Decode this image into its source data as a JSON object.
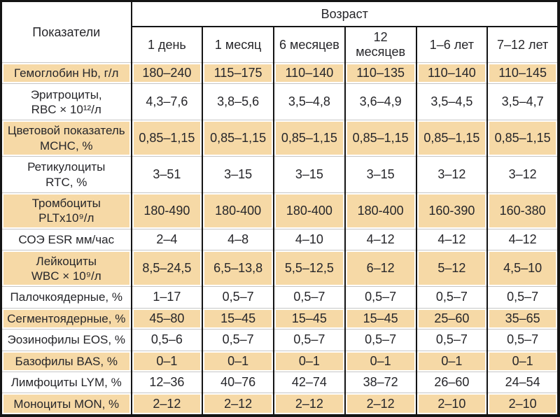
{
  "table": {
    "corner_header": "Показатели",
    "age_group_header": "Возраст",
    "age_columns": [
      "1 день",
      "1 месяц",
      "6 месяцев",
      "12 месяцев",
      "1–6 лет",
      "7–12 лет"
    ],
    "rows": [
      {
        "label": "Гемоглобин Hb, г/л",
        "values": [
          "180–240",
          "115–175",
          "110–140",
          "110–135",
          "110–140",
          "110–145"
        ]
      },
      {
        "label": "Эритроциты,\nRBC × 10¹²/л",
        "values": [
          "4,3–7,6",
          "3,8–5,6",
          "3,5–4,8",
          "3,6–4,9",
          "3,5–4,5",
          "3,5–4,7"
        ]
      },
      {
        "label": "Цветовой показатель\nMCHC, %",
        "values": [
          "0,85–1,15",
          "0,85–1,15",
          "0,85–1,15",
          "0,85–1,15",
          "0,85–1,15",
          "0,85–1,15"
        ]
      },
      {
        "label": "Ретикулоциты\nRTC, %",
        "values": [
          "3–51",
          "3–15",
          "3–15",
          "3–15",
          "3–12",
          "3–12"
        ]
      },
      {
        "label": "Тромбоциты\nPLTx10⁹/л",
        "values": [
          "180-490",
          "180-400",
          "180-400",
          "180-400",
          "160-390",
          "160-380"
        ]
      },
      {
        "label": "СОЭ ESR мм/час",
        "values": [
          "2–4",
          "4–8",
          "4–10",
          "4–12",
          "4–12",
          "4–12"
        ]
      },
      {
        "label": "Лейкоциты\nWBC × 10⁹/л",
        "values": [
          "8,5–24,5",
          "6,5–13,8",
          "5,5–12,5",
          "6–12",
          "5–12",
          "4,5–10"
        ]
      },
      {
        "label": "Палочкоядерные, %",
        "values": [
          "1–17",
          "0,5–7",
          "0,5–7",
          "0,5–7",
          "0,5–7",
          "0,5–7"
        ]
      },
      {
        "label": "Сегментоядерные, %",
        "values": [
          "45–80",
          "15–45",
          "15–45",
          "15–45",
          "25–60",
          "35–65"
        ]
      },
      {
        "label": "Эозинофилы EOS, %",
        "values": [
          "0,5–6",
          "0,5–7",
          "0,5–7",
          "0,5–7",
          "0,5–7",
          "0,5–7"
        ]
      },
      {
        "label": "Базофилы BAS, %",
        "values": [
          "0–1",
          "0–1",
          "0–1",
          "0–1",
          "0–1",
          "0–1"
        ]
      },
      {
        "label": "Лимфоциты LYM, %",
        "values": [
          "12–36",
          "40–76",
          "42–74",
          "38–72",
          "26–60",
          "24–54"
        ]
      },
      {
        "label": "Моноциты MON, %",
        "values": [
          "2–12",
          "2–12",
          "2–12",
          "2–12",
          "2–10",
          "2–10"
        ]
      }
    ]
  },
  "colors": {
    "band": "#f6d9a6",
    "border_dark": "#141414",
    "row_line": "#c6c6c6",
    "text": "#26262a",
    "background": "#ffffff"
  },
  "chart_data": {
    "type": "table",
    "group_header": "Возраст",
    "column_headers": [
      "Показатели",
      "1 день",
      "1 месяц",
      "6 месяцев",
      "12 месяцев",
      "1–6 лет",
      "7–12 лет"
    ],
    "rows": [
      [
        "Гемоглобин Hb, г/л",
        "180–240",
        "115–175",
        "110–140",
        "110–135",
        "110–140",
        "110–145"
      ],
      [
        "Эритроциты, RBC × 10¹²/л",
        "4,3–7,6",
        "3,8–5,6",
        "3,5–4,8",
        "3,6–4,9",
        "3,5–4,5",
        "3,5–4,7"
      ],
      [
        "Цветовой показатель MCHC, %",
        "0,85–1,15",
        "0,85–1,15",
        "0,85–1,15",
        "0,85–1,15",
        "0,85–1,15",
        "0,85–1,15"
      ],
      [
        "Ретикулоциты RTC, %",
        "3–51",
        "3–15",
        "3–15",
        "3–15",
        "3–12",
        "3–12"
      ],
      [
        "Тромбоциты PLTx10⁹/л",
        "180-490",
        "180-400",
        "180-400",
        "180-400",
        "160-390",
        "160-380"
      ],
      [
        "СОЭ ESR мм/час",
        "2–4",
        "4–8",
        "4–10",
        "4–12",
        "4–12",
        "4–12"
      ],
      [
        "Лейкоциты WBC × 10⁹/л",
        "8,5–24,5",
        "6,5–13,8",
        "5,5–12,5",
        "6–12",
        "5–12",
        "4,5–10"
      ],
      [
        "Палочкоядерные, %",
        "1–17",
        "0,5–7",
        "0,5–7",
        "0,5–7",
        "0,5–7",
        "0,5–7"
      ],
      [
        "Сегментоядерные, %",
        "45–80",
        "15–45",
        "15–45",
        "15–45",
        "25–60",
        "35–65"
      ],
      [
        "Эозинофилы EOS, %",
        "0,5–6",
        "0,5–7",
        "0,5–7",
        "0,5–7",
        "0,5–7",
        "0,5–7"
      ],
      [
        "Базофилы BAS, %",
        "0–1",
        "0–1",
        "0–1",
        "0–1",
        "0–1",
        "0–1"
      ],
      [
        "Лимфоциты LYM, %",
        "12–36",
        "40–76",
        "42–74",
        "38–72",
        "26–60",
        "24–54"
      ],
      [
        "Моноциты MON, %",
        "2–12",
        "2–12",
        "2–12",
        "2–12",
        "2–10",
        "2–10"
      ]
    ]
  }
}
